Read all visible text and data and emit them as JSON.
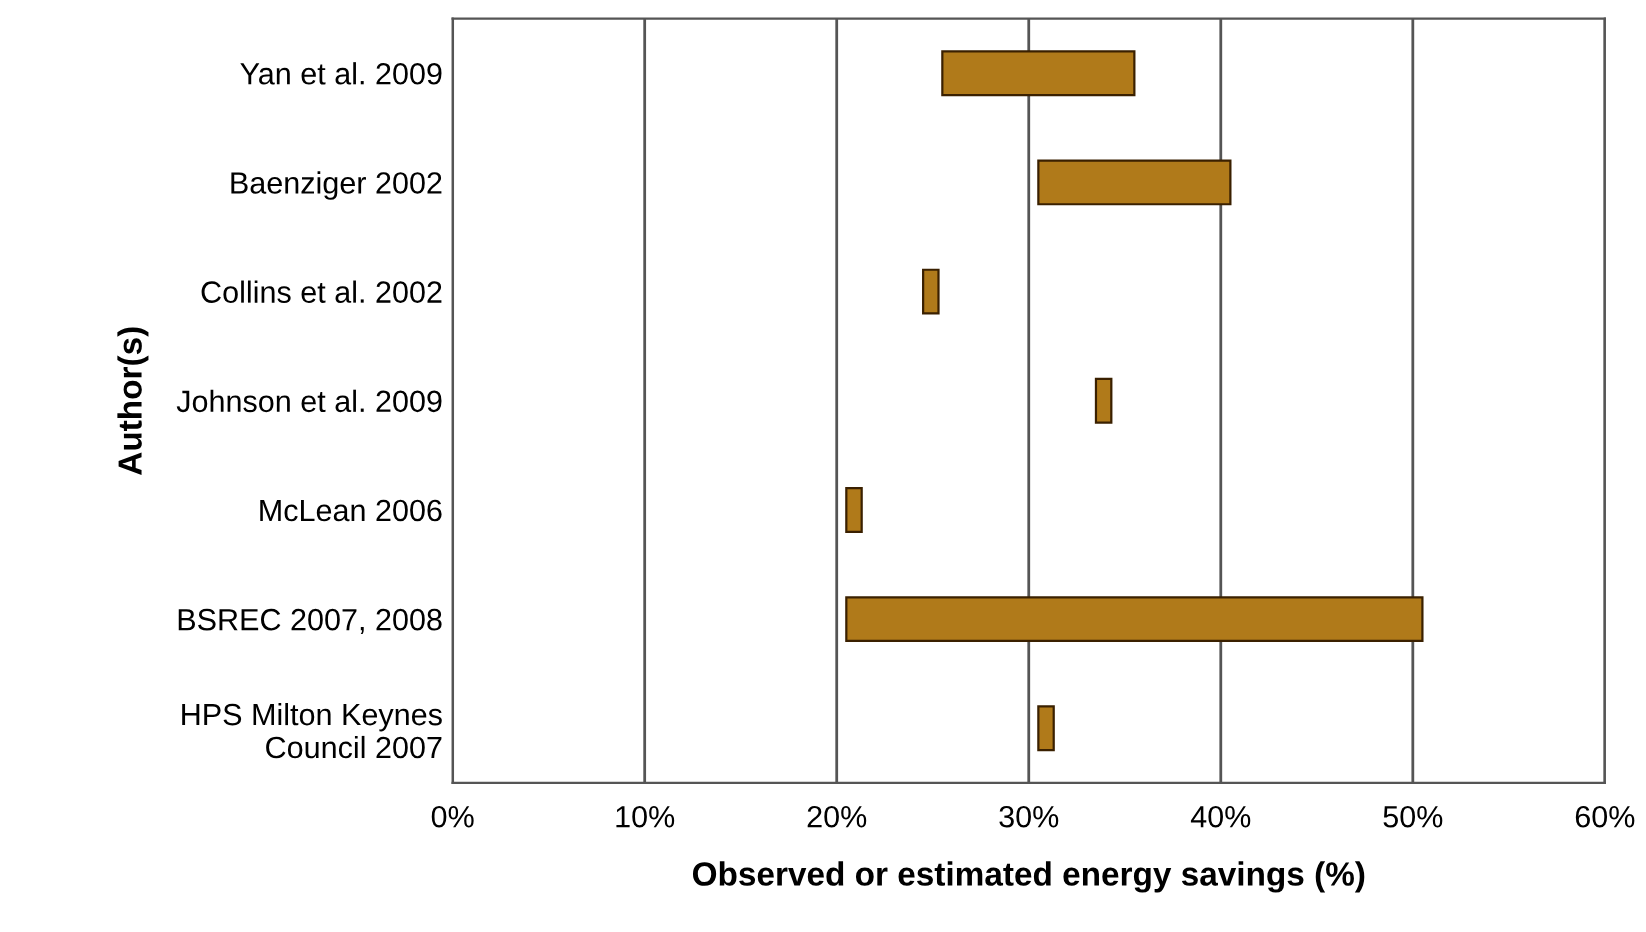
{
  "chart_data": {
    "type": "bar",
    "orientation": "horizontal",
    "xlabel": "Observed or estimated energy savings (%)",
    "ylabel": "Author(s)",
    "categories": [
      "Yan et al. 2009",
      "Baenziger 2002",
      "Collins et al. 2002",
      "Johnson et al. 2009",
      "McLean 2006",
      "BSREC 2007, 2008",
      "HPS Milton Keynes Council 2007"
    ],
    "base": [
      25.5,
      30.5,
      24.5,
      33.5,
      20.5,
      20.5,
      30.5
    ],
    "values": [
      10,
      10,
      0.8,
      0.8,
      0.8,
      30,
      0.8
    ],
    "color": "#b07a1a",
    "xlim": [
      0,
      60
    ],
    "xticks": [
      {
        "value": 0,
        "label": "0%"
      },
      {
        "value": 10,
        "label": "10%"
      },
      {
        "value": 20,
        "label": "20%"
      },
      {
        "value": 30,
        "label": "30%"
      },
      {
        "value": 40,
        "label": "40%"
      },
      {
        "value": 50,
        "label": "50%"
      },
      {
        "value": 60,
        "label": "60%"
      }
    ],
    "grid": "x"
  }
}
